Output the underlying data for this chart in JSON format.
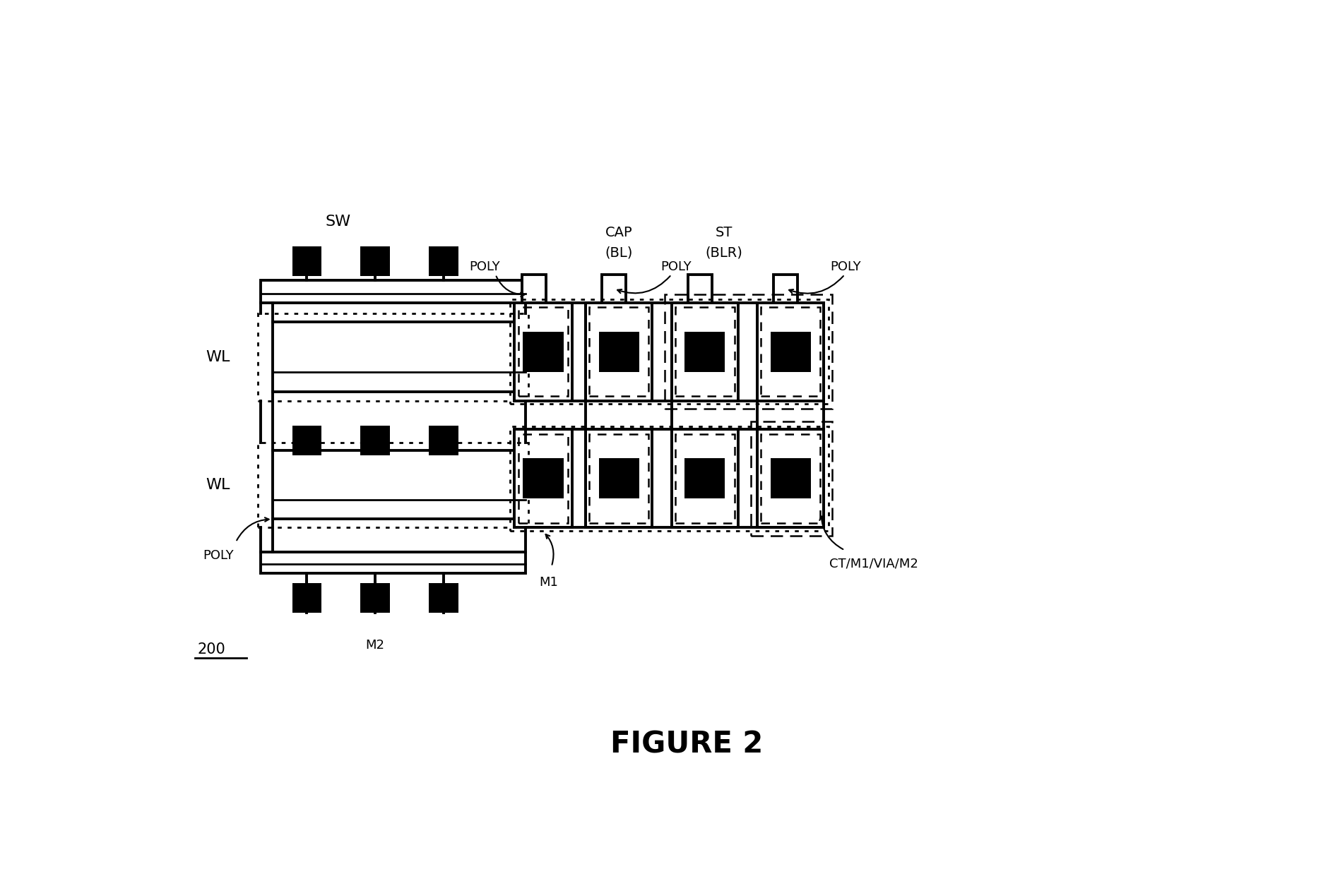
{
  "fig_width": 18.97,
  "fig_height": 12.65,
  "bg_color": "#ffffff",
  "figure_title": "FIGURE 2",
  "label_ref": "200",
  "sw_label": "SW",
  "wl_label": "WL",
  "poly_label": "POLY",
  "cap_label1": "CAP",
  "cap_label2": "(BL)",
  "st_label1": "ST",
  "st_label2": "(BLR)",
  "m2_label": "M2",
  "m1_label": "M1",
  "ct_label": "CT/M1/VIA/M2",
  "poly_bot_label": "POLY"
}
